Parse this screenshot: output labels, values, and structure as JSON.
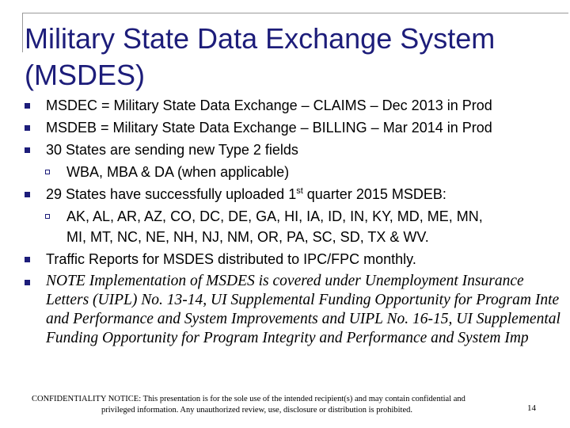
{
  "title": "Military State Data Exchange System (MSDES)",
  "bullets": [
    "MSDEC = Military State Data Exchange – CLAIMS – Dec 2013 in Prod",
    "MSDEB = Military State Data Exchange – BILLING – Mar 2014 in Prod",
    "30 States are sending new Type 2 fields",
    "WBA, MBA & DA (when applicable)",
    "29 States have successfully uploaded 1",
    "st",
    " quarter 2015 MSDEB:",
    "AK, AL, AR, AZ, CO, DC, DE, GA, HI, IA, ID, IN, KY, MD, ME, MN,",
    "MI, MT, NC, NE, NH, NJ, NM, OR, PA, SC, SD, TX & WV.",
    "Traffic Reports for MSDES distributed to IPC/FPC monthly."
  ],
  "note": {
    "line1": "NOTE Implementation of MSDES is covered under Unemployment Insurance",
    "line2": "Letters (UIPL) No. 13-14, UI Supplemental Funding Opportunity for Program Inte",
    "line3": "and Performance and System Improvements and UIPL No. 16-15, UI Supplemental",
    "line4": "Funding Opportunity for Program Integrity and Performance and System Imp"
  },
  "footer": {
    "line1": "CONFIDENTIALITY NOTICE: This presentation is for the sole use of the intended recipient(s) and may contain confidential and",
    "line2": "privileged information.  Any unauthorized review, use, disclosure or distribution is prohibited.",
    "page_number": "14"
  },
  "colors": {
    "title": "#1d1d7a",
    "bullet": "#1d1d7a",
    "frame": "#9a9a9a"
  }
}
